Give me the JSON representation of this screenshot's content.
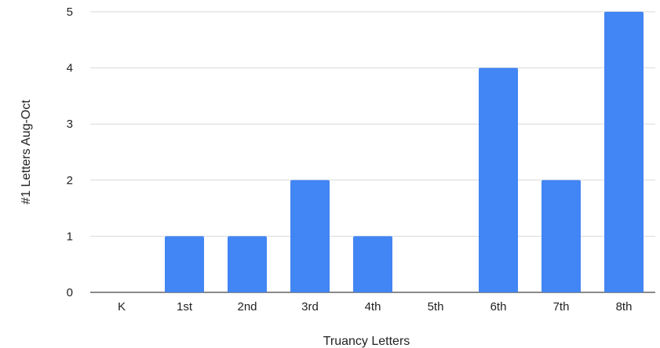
{
  "chart_data": {
    "type": "bar",
    "title": "",
    "xlabel": "Truancy Letters",
    "ylabel": "#1 Letters Aug-Oct",
    "categories": [
      "K",
      "1st",
      "2nd",
      "3rd",
      "4th",
      "5th",
      "6th",
      "7th",
      "8th"
    ],
    "values": [
      0,
      1,
      1,
      2,
      1,
      0,
      4,
      2,
      5
    ],
    "ylim": [
      0,
      5
    ],
    "yticks": [
      "0",
      "1",
      "2",
      "3",
      "4",
      "5"
    ],
    "grid": true,
    "legend": "none",
    "bar_color": "#4285F4",
    "grid_color": "#D9D9D9",
    "baseline_color": "#444444"
  }
}
